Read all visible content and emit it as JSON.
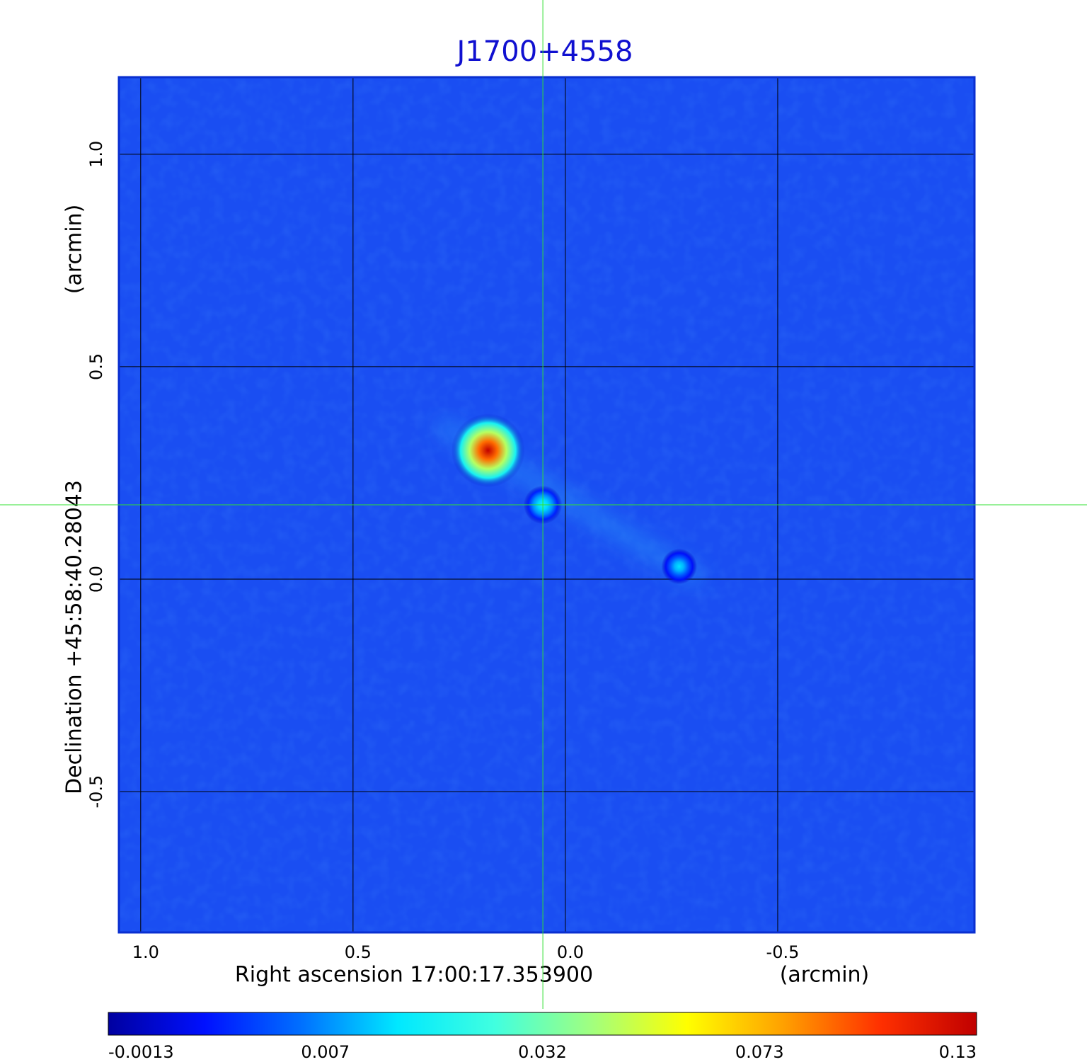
{
  "chart_data": {
    "type": "image",
    "title": "J1700+4558",
    "xlabel": "Right ascension  17:00:17.353900",
    "xunit": "(arcmin)",
    "ylabel": "Declination  +45:58:40.28043",
    "yunit": "(arcmin)",
    "xlim": [
      1.053,
      -0.965
    ],
    "ylim": [
      -0.833,
      1.183
    ],
    "xticks": [
      {
        "value": 1,
        "label": "1.0"
      },
      0.5,
      {
        "value": 0,
        "label": "0.0"
      },
      -0.5
    ],
    "yticks": [
      {
        "value": 1,
        "label": "1.0"
      },
      0.5,
      {
        "value": 0,
        "label": "0.0"
      },
      -0.5
    ],
    "grid": true,
    "crosshair": [
      0.053,
      0.175
    ],
    "sources": {
      "x": [
        0.182,
        0.053,
        -0.268
      ],
      "y": [
        0.303,
        0.175,
        0.03
      ],
      "values": [
        0.13,
        0.02,
        0.015
      ]
    },
    "colorbar": {
      "ticks": [
        -0.0013,
        0.007,
        0.032,
        0.073,
        0.13
      ],
      "colormap": [
        "#0000a0",
        "#0010ff",
        "#0070ff",
        "#00e8ff",
        "#40ffe0",
        "#a0ff80",
        "#ffff00",
        "#ffa000",
        "#ff3000",
        "#c00000"
      ]
    }
  }
}
